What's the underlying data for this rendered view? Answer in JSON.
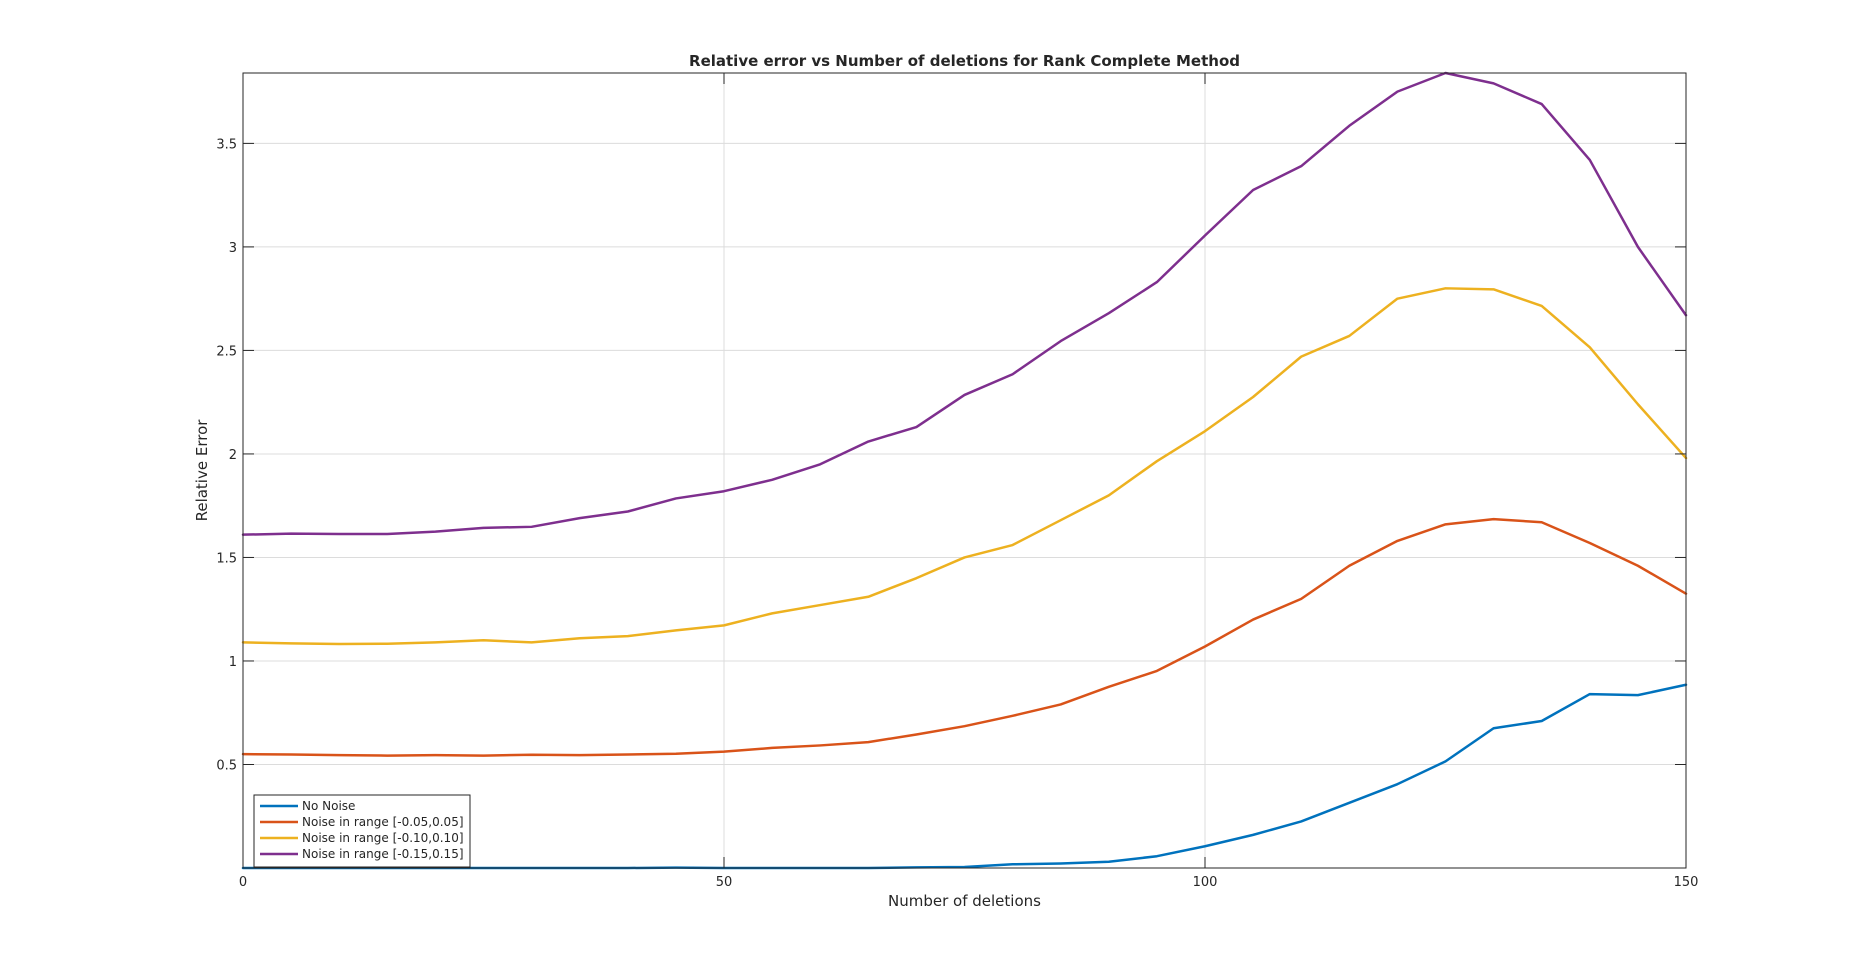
{
  "chart_data": {
    "type": "line",
    "title": "Relative error vs Number of deletions for Rank Complete Method",
    "xlabel": "Number of deletions",
    "ylabel": "Relative Error",
    "xlim": [
      0,
      150
    ],
    "ylim": [
      0,
      3.84
    ],
    "xticks": [
      0,
      50,
      100,
      150
    ],
    "xtick_labels": [
      "0",
      "50",
      "100",
      "150"
    ],
    "yticks": [
      0.5,
      1,
      1.5,
      2,
      2.5,
      3,
      3.5
    ],
    "ytick_labels": [
      "0.5",
      "1",
      "1.5",
      "2",
      "2.5",
      "3",
      "3.5"
    ],
    "grid": true,
    "legend_position": "bottom-left",
    "x": [
      0,
      5,
      10,
      15,
      20,
      25,
      30,
      35,
      40,
      45,
      50,
      55,
      60,
      65,
      70,
      75,
      80,
      85,
      90,
      95,
      100,
      105,
      110,
      115,
      120,
      125,
      130,
      135,
      140,
      145,
      150
    ],
    "series": [
      {
        "name": "No Noise",
        "color": "#0072BD",
        "values": [
          0,
          0,
          0,
          0,
          0,
          0,
          0,
          0,
          0,
          0.002,
          0,
          0,
          0,
          0,
          0.003,
          0.005,
          0.018,
          0.022,
          0.03,
          0.057,
          0.105,
          0.16,
          0.225,
          0.315,
          0.405,
          0.515,
          0.675,
          0.71,
          0.84,
          0.835,
          0.885
        ]
      },
      {
        "name": "Noise in range [-0.05,0.05]",
        "color": "#D95319",
        "values": [
          0.55,
          0.548,
          0.545,
          0.543,
          0.545,
          0.543,
          0.547,
          0.545,
          0.548,
          0.552,
          0.562,
          0.58,
          0.592,
          0.608,
          0.645,
          0.685,
          0.735,
          0.79,
          0.875,
          0.952,
          1.07,
          1.2,
          1.3,
          1.46,
          1.58,
          1.66,
          1.685,
          1.67,
          1.57,
          1.46,
          1.325
        ]
      },
      {
        "name": "Noise in range [-0.10,0.10]",
        "color": "#EDB120",
        "values": [
          1.09,
          1.085,
          1.082,
          1.083,
          1.09,
          1.1,
          1.09,
          1.11,
          1.12,
          1.148,
          1.172,
          1.23,
          1.27,
          1.31,
          1.4,
          1.5,
          1.56,
          1.68,
          1.8,
          1.965,
          2.11,
          2.275,
          2.47,
          2.57,
          2.75,
          2.8,
          2.795,
          2.715,
          2.515,
          2.24,
          1.98
        ]
      },
      {
        "name": "Noise in range [-0.15,0.15]",
        "color": "#7E2F8E",
        "values": [
          1.61,
          1.615,
          1.613,
          1.613,
          1.625,
          1.643,
          1.648,
          1.69,
          1.722,
          1.785,
          1.82,
          1.875,
          1.95,
          2.06,
          2.13,
          2.285,
          2.385,
          2.545,
          2.68,
          2.83,
          3.055,
          3.275,
          3.39,
          3.585,
          3.75,
          3.84,
          3.79,
          3.69,
          3.42,
          3.0,
          2.67
        ]
      }
    ]
  }
}
